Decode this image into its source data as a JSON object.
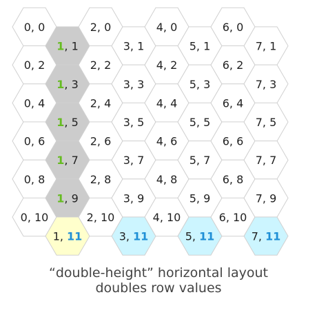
{
  "colors": {
    "default_fill": "#ffffff",
    "path_fill": "#cccccc",
    "start_fill": "#ffffcc",
    "target_fill": "#ccf5ff",
    "stroke": "#d0d0d0",
    "text": "#222222",
    "highlight_green": "#66bb22",
    "highlight_blue": "#1f8fd6"
  },
  "hexes": [
    {
      "col": 0,
      "row": 0,
      "label": "0, 0",
      "fill": "default"
    },
    {
      "col": 0,
      "row": 2,
      "label": "0, 2",
      "fill": "default"
    },
    {
      "col": 0,
      "row": 4,
      "label": "0, 4",
      "fill": "default"
    },
    {
      "col": 0,
      "row": 6,
      "label": "0, 6",
      "fill": "default"
    },
    {
      "col": 0,
      "row": 8,
      "label": "0, 8",
      "fill": "default"
    },
    {
      "col": 0,
      "row": 10,
      "label": "0, 10",
      "fill": "default"
    },
    {
      "col": 1,
      "row": 1,
      "label": "1, 1",
      "fill": "path",
      "colored": "col",
      "colored_color": "green"
    },
    {
      "col": 1,
      "row": 3,
      "label": "1, 3",
      "fill": "path",
      "colored": "col",
      "colored_color": "green"
    },
    {
      "col": 1,
      "row": 5,
      "label": "1, 5",
      "fill": "path",
      "colored": "col",
      "colored_color": "green"
    },
    {
      "col": 1,
      "row": 7,
      "label": "1, 7",
      "fill": "path",
      "colored": "col",
      "colored_color": "green"
    },
    {
      "col": 1,
      "row": 9,
      "label": "1, 9",
      "fill": "path",
      "colored": "col",
      "colored_color": "green"
    },
    {
      "col": 1,
      "row": 11,
      "label": "1, 11",
      "fill": "start",
      "colored": "row",
      "colored_color": "blue"
    },
    {
      "col": 2,
      "row": 0,
      "label": "2, 0",
      "fill": "default"
    },
    {
      "col": 2,
      "row": 2,
      "label": "2, 2",
      "fill": "default"
    },
    {
      "col": 2,
      "row": 4,
      "label": "2, 4",
      "fill": "default"
    },
    {
      "col": 2,
      "row": 6,
      "label": "2, 6",
      "fill": "default"
    },
    {
      "col": 2,
      "row": 8,
      "label": "2, 8",
      "fill": "default"
    },
    {
      "col": 2,
      "row": 10,
      "label": "2, 10",
      "fill": "default"
    },
    {
      "col": 3,
      "row": 1,
      "label": "3, 1",
      "fill": "default"
    },
    {
      "col": 3,
      "row": 3,
      "label": "3, 3",
      "fill": "default"
    },
    {
      "col": 3,
      "row": 5,
      "label": "3, 5",
      "fill": "default"
    },
    {
      "col": 3,
      "row": 7,
      "label": "3, 7",
      "fill": "default"
    },
    {
      "col": 3,
      "row": 9,
      "label": "3, 9",
      "fill": "default"
    },
    {
      "col": 3,
      "row": 11,
      "label": "3, 11",
      "fill": "target",
      "colored": "row",
      "colored_color": "blue"
    },
    {
      "col": 4,
      "row": 0,
      "label": "4, 0",
      "fill": "default"
    },
    {
      "col": 4,
      "row": 2,
      "label": "4, 2",
      "fill": "default"
    },
    {
      "col": 4,
      "row": 4,
      "label": "4, 4",
      "fill": "default"
    },
    {
      "col": 4,
      "row": 6,
      "label": "4, 6",
      "fill": "default"
    },
    {
      "col": 4,
      "row": 8,
      "label": "4, 8",
      "fill": "default"
    },
    {
      "col": 4,
      "row": 10,
      "label": "4, 10",
      "fill": "default"
    },
    {
      "col": 5,
      "row": 1,
      "label": "5, 1",
      "fill": "default"
    },
    {
      "col": 5,
      "row": 3,
      "label": "5, 3",
      "fill": "default"
    },
    {
      "col": 5,
      "row": 5,
      "label": "5, 5",
      "fill": "default"
    },
    {
      "col": 5,
      "row": 7,
      "label": "5, 7",
      "fill": "default"
    },
    {
      "col": 5,
      "row": 9,
      "label": "5, 9",
      "fill": "default"
    },
    {
      "col": 5,
      "row": 11,
      "label": "5, 11",
      "fill": "target",
      "colored": "row",
      "colored_color": "blue"
    },
    {
      "col": 6,
      "row": 0,
      "label": "6, 0",
      "fill": "default"
    },
    {
      "col": 6,
      "row": 2,
      "label": "6, 2",
      "fill": "default"
    },
    {
      "col": 6,
      "row": 4,
      "label": "6, 4",
      "fill": "default"
    },
    {
      "col": 6,
      "row": 6,
      "label": "6, 6",
      "fill": "default"
    },
    {
      "col": 6,
      "row": 8,
      "label": "6, 8",
      "fill": "default"
    },
    {
      "col": 6,
      "row": 10,
      "label": "6, 10",
      "fill": "default"
    },
    {
      "col": 7,
      "row": 1,
      "label": "7, 1",
      "fill": "default"
    },
    {
      "col": 7,
      "row": 3,
      "label": "7, 3",
      "fill": "default"
    },
    {
      "col": 7,
      "row": 5,
      "label": "7, 5",
      "fill": "default"
    },
    {
      "col": 7,
      "row": 7,
      "label": "7, 7",
      "fill": "default"
    },
    {
      "col": 7,
      "row": 9,
      "label": "7, 9",
      "fill": "default"
    },
    {
      "col": 7,
      "row": 11,
      "label": "7, 11",
      "fill": "target",
      "colored": "row",
      "colored_color": "blue"
    }
  ],
  "caption": {
    "line1": "“double-height” horizontal layout",
    "line2": "doubles row values"
  }
}
